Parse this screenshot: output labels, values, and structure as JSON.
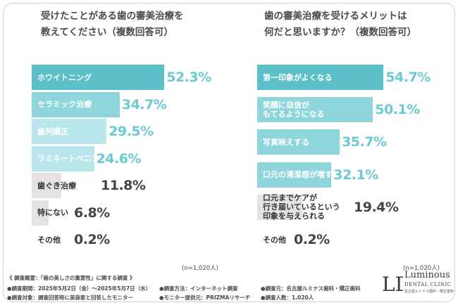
{
  "chart_data": [
    {
      "type": "bar",
      "orientation": "horizontal",
      "title_lines": [
        "受けたことがある歯の審美治療を",
        "教えてください（複数回答可）"
      ],
      "categories": [
        "ホワイトニング",
        "セラミック治療",
        "歯列矯正",
        "ラミネートベニア",
        "歯ぐき治療",
        "特にない",
        "その他"
      ],
      "values": [
        52.3,
        34.7,
        29.5,
        24.6,
        11.8,
        6.8,
        0.2
      ],
      "value_labels": [
        "52.3%",
        "34.7%",
        "29.5%",
        "24.6%",
        "11.8%",
        "6.8%",
        "0.2%"
      ],
      "note": "(n=1,020人)"
    },
    {
      "type": "bar",
      "orientation": "horizontal",
      "title_lines": [
        "歯の審美治療を受けるメリットは",
        "何だと思いますか？（複数回答可）"
      ],
      "categories": [
        [
          "第一印象がよくなる"
        ],
        [
          "笑顔に自信が",
          "もてるようになる"
        ],
        [
          "写真映えする"
        ],
        [
          "口元の清潔感が増す"
        ],
        [
          "口元までケアが",
          "行き届いているという",
          "印象を与えられる"
        ],
        [
          "その他"
        ]
      ],
      "values": [
        54.7,
        50.1,
        35.7,
        32.1,
        19.4,
        0.2
      ],
      "value_labels": [
        "54.7%",
        "50.1%",
        "35.7%",
        "32.1%",
        "19.4%",
        "0.2%"
      ],
      "note": "(n=1,020人)"
    }
  ],
  "colors": {
    "dark_teal": "#5bc0c9",
    "mid_teal": "#8fd6dc",
    "light_teal": "#b8e6ea",
    "gray": "#e3e3e3",
    "value_teal": "#6cc9d1",
    "value_dark": "#444444"
  },
  "footer": {
    "line1": "《 調査概要：「歯の美しさの重要性」に関する調査 》",
    "line2a": "●調査期間：2025年5月2日（金）～2025年5月7日（水）",
    "line2b": "●調査方法：インターネット調査",
    "line2c": "●調査元：名古屋ルミナス歯科・矯正歯科",
    "line3a": "●調査対象：調査回答時に美容家と回答したモニター",
    "line3b": "●モニター提供元：PRIZMAリサーチ",
    "line3c": "●調査人数：1,020人"
  },
  "logo": {
    "mark": "LD",
    "name": "Luminous",
    "sub": "DENTAL CLINIC",
    "tagline": "名古屋ルミナス歯科・矯正歯科"
  }
}
